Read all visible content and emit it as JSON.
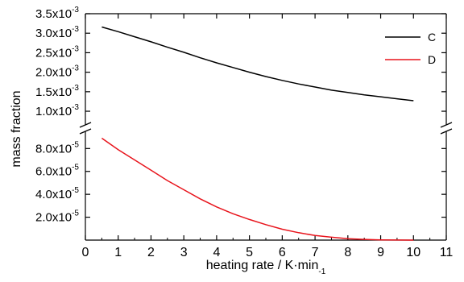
{
  "chart_data": {
    "type": "line",
    "xlabel": "heating rate / K·min",
    "xlabel_sup": "-1",
    "ylabel": "mass fraction",
    "xlim": [
      0,
      11
    ],
    "x_ticks": [
      0,
      1,
      2,
      3,
      4,
      5,
      6,
      7,
      8,
      9,
      10,
      11
    ],
    "broken_y_axis": true,
    "upper_panel": {
      "ylim": [
        0.00065,
        0.0035
      ],
      "y_ticks": [
        {
          "value": 0.001,
          "mantissa": "1.0x10",
          "exp": "-3"
        },
        {
          "value": 0.0015,
          "mantissa": "1.5x10",
          "exp": "-3"
        },
        {
          "value": 0.002,
          "mantissa": "2.0x10",
          "exp": "-3"
        },
        {
          "value": 0.0025,
          "mantissa": "2.5x10",
          "exp": "-3"
        },
        {
          "value": 0.003,
          "mantissa": "3.0x10",
          "exp": "-3"
        },
        {
          "value": 0.0035,
          "mantissa": "3.5x10",
          "exp": "-3"
        }
      ]
    },
    "lower_panel": {
      "ylim": [
        0,
        9.5e-05
      ],
      "y_ticks": [
        {
          "value": 2e-05,
          "mantissa": "2.0x10",
          "exp": "-5"
        },
        {
          "value": 4e-05,
          "mantissa": "4.0x10",
          "exp": "-5"
        },
        {
          "value": 6e-05,
          "mantissa": "6.0x10",
          "exp": "-5"
        },
        {
          "value": 8e-05,
          "mantissa": "8.0x10",
          "exp": "-5"
        }
      ]
    },
    "series": [
      {
        "name": "C",
        "color": "#000000",
        "panel": "upper",
        "x": [
          0.5,
          1,
          1.5,
          2,
          2.5,
          3,
          3.5,
          4,
          4.5,
          5,
          5.5,
          6,
          6.5,
          7,
          7.5,
          8,
          8.5,
          9,
          9.5,
          10
        ],
        "y": [
          0.00316,
          0.00304,
          0.00291,
          0.00278,
          0.00264,
          0.00251,
          0.00237,
          0.00224,
          0.00212,
          0.002,
          0.00189,
          0.00179,
          0.0017,
          0.00162,
          0.00154,
          0.00148,
          0.00142,
          0.00137,
          0.00132,
          0.00127
        ]
      },
      {
        "name": "D",
        "color": "#e8141c",
        "panel": "lower",
        "x": [
          0.5,
          1,
          1.5,
          2,
          2.5,
          3,
          3.5,
          4,
          4.5,
          5,
          5.5,
          6,
          6.5,
          7,
          7.5,
          8,
          8.5,
          9,
          9.5,
          10
        ],
        "y": [
          8.9e-05,
          7.9e-05,
          7e-05,
          6.1e-05,
          5.2e-05,
          4.4e-05,
          3.6e-05,
          2.9e-05,
          2.3e-05,
          1.8e-05,
          1.35e-05,
          9.5e-06,
          6.5e-06,
          4e-06,
          2.5e-06,
          1.3e-06,
          6e-07,
          2e-07,
          1e-07,
          0.0
        ]
      }
    ],
    "legend": {
      "position": "top-right",
      "entries": [
        "C",
        "D"
      ]
    },
    "grid": false
  }
}
